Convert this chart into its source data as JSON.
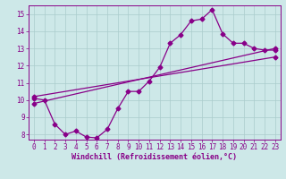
{
  "xlabel": "Windchill (Refroidissement éolien,°C)",
  "bg_color": "#cde8e8",
  "grid_color": "#aacccc",
  "line_color": "#880088",
  "xlim": [
    -0.5,
    23.5
  ],
  "ylim": [
    7.7,
    15.5
  ],
  "xticks": [
    0,
    1,
    2,
    3,
    4,
    5,
    6,
    7,
    8,
    9,
    10,
    11,
    12,
    13,
    14,
    15,
    16,
    17,
    18,
    19,
    20,
    21,
    22,
    23
  ],
  "yticks": [
    8,
    9,
    10,
    11,
    12,
    13,
    14,
    15
  ],
  "line1_x": [
    0,
    1,
    2,
    3,
    4,
    5,
    6,
    7,
    8,
    9,
    10,
    11,
    12,
    13,
    14,
    15,
    16,
    17,
    18,
    19,
    20,
    21,
    22,
    23
  ],
  "line1_y": [
    10.1,
    10.0,
    8.6,
    8.0,
    8.2,
    7.85,
    7.8,
    8.3,
    9.5,
    10.5,
    10.5,
    11.1,
    11.9,
    13.3,
    13.8,
    14.6,
    14.7,
    15.25,
    13.85,
    13.3,
    13.3,
    13.0,
    12.9,
    12.9
  ],
  "line2_x": [
    0,
    23
  ],
  "line2_y": [
    9.8,
    13.0
  ],
  "line3_x": [
    0,
    23
  ],
  "line3_y": [
    10.2,
    12.5
  ],
  "marker": "D",
  "marker_size": 2.5,
  "linewidth": 0.9,
  "tick_fontsize": 5.5,
  "label_fontsize": 6.0
}
